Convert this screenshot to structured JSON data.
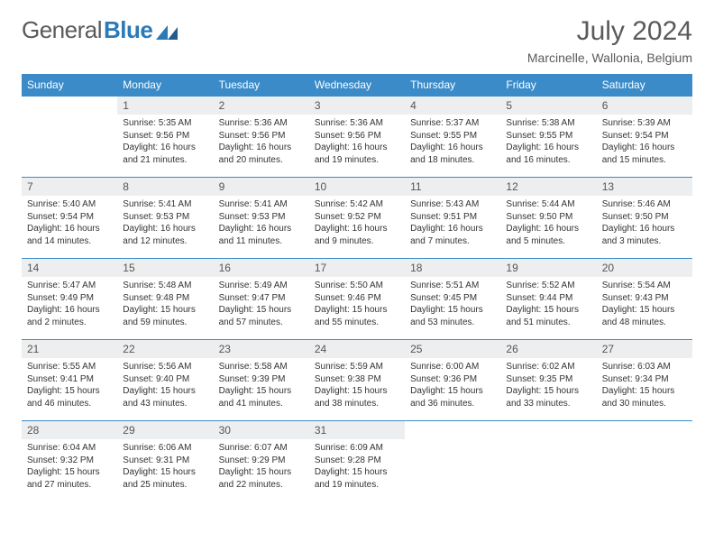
{
  "brand": {
    "part1": "General",
    "part2": "Blue",
    "color_gray": "#5a5a5a",
    "color_blue": "#2a7ab8"
  },
  "title": "July 2024",
  "location": "Marcinelle, Wallonia, Belgium",
  "header_bg": "#3a8bc8",
  "daynum_bg": "#eceeef",
  "weekdays": [
    "Sunday",
    "Monday",
    "Tuesday",
    "Wednesday",
    "Thursday",
    "Friday",
    "Saturday"
  ],
  "weeks": [
    {
      "nums": [
        "",
        "1",
        "2",
        "3",
        "4",
        "5",
        "6"
      ],
      "cells": [
        {
          "sunrise": "",
          "sunset": "",
          "daylight": ""
        },
        {
          "sunrise": "Sunrise: 5:35 AM",
          "sunset": "Sunset: 9:56 PM",
          "daylight": "Daylight: 16 hours and 21 minutes."
        },
        {
          "sunrise": "Sunrise: 5:36 AM",
          "sunset": "Sunset: 9:56 PM",
          "daylight": "Daylight: 16 hours and 20 minutes."
        },
        {
          "sunrise": "Sunrise: 5:36 AM",
          "sunset": "Sunset: 9:56 PM",
          "daylight": "Daylight: 16 hours and 19 minutes."
        },
        {
          "sunrise": "Sunrise: 5:37 AM",
          "sunset": "Sunset: 9:55 PM",
          "daylight": "Daylight: 16 hours and 18 minutes."
        },
        {
          "sunrise": "Sunrise: 5:38 AM",
          "sunset": "Sunset: 9:55 PM",
          "daylight": "Daylight: 16 hours and 16 minutes."
        },
        {
          "sunrise": "Sunrise: 5:39 AM",
          "sunset": "Sunset: 9:54 PM",
          "daylight": "Daylight: 16 hours and 15 minutes."
        }
      ]
    },
    {
      "nums": [
        "7",
        "8",
        "9",
        "10",
        "11",
        "12",
        "13"
      ],
      "cells": [
        {
          "sunrise": "Sunrise: 5:40 AM",
          "sunset": "Sunset: 9:54 PM",
          "daylight": "Daylight: 16 hours and 14 minutes."
        },
        {
          "sunrise": "Sunrise: 5:41 AM",
          "sunset": "Sunset: 9:53 PM",
          "daylight": "Daylight: 16 hours and 12 minutes."
        },
        {
          "sunrise": "Sunrise: 5:41 AM",
          "sunset": "Sunset: 9:53 PM",
          "daylight": "Daylight: 16 hours and 11 minutes."
        },
        {
          "sunrise": "Sunrise: 5:42 AM",
          "sunset": "Sunset: 9:52 PM",
          "daylight": "Daylight: 16 hours and 9 minutes."
        },
        {
          "sunrise": "Sunrise: 5:43 AM",
          "sunset": "Sunset: 9:51 PM",
          "daylight": "Daylight: 16 hours and 7 minutes."
        },
        {
          "sunrise": "Sunrise: 5:44 AM",
          "sunset": "Sunset: 9:50 PM",
          "daylight": "Daylight: 16 hours and 5 minutes."
        },
        {
          "sunrise": "Sunrise: 5:46 AM",
          "sunset": "Sunset: 9:50 PM",
          "daylight": "Daylight: 16 hours and 3 minutes."
        }
      ]
    },
    {
      "nums": [
        "14",
        "15",
        "16",
        "17",
        "18",
        "19",
        "20"
      ],
      "cells": [
        {
          "sunrise": "Sunrise: 5:47 AM",
          "sunset": "Sunset: 9:49 PM",
          "daylight": "Daylight: 16 hours and 2 minutes."
        },
        {
          "sunrise": "Sunrise: 5:48 AM",
          "sunset": "Sunset: 9:48 PM",
          "daylight": "Daylight: 15 hours and 59 minutes."
        },
        {
          "sunrise": "Sunrise: 5:49 AM",
          "sunset": "Sunset: 9:47 PM",
          "daylight": "Daylight: 15 hours and 57 minutes."
        },
        {
          "sunrise": "Sunrise: 5:50 AM",
          "sunset": "Sunset: 9:46 PM",
          "daylight": "Daylight: 15 hours and 55 minutes."
        },
        {
          "sunrise": "Sunrise: 5:51 AM",
          "sunset": "Sunset: 9:45 PM",
          "daylight": "Daylight: 15 hours and 53 minutes."
        },
        {
          "sunrise": "Sunrise: 5:52 AM",
          "sunset": "Sunset: 9:44 PM",
          "daylight": "Daylight: 15 hours and 51 minutes."
        },
        {
          "sunrise": "Sunrise: 5:54 AM",
          "sunset": "Sunset: 9:43 PM",
          "daylight": "Daylight: 15 hours and 48 minutes."
        }
      ]
    },
    {
      "nums": [
        "21",
        "22",
        "23",
        "24",
        "25",
        "26",
        "27"
      ],
      "cells": [
        {
          "sunrise": "Sunrise: 5:55 AM",
          "sunset": "Sunset: 9:41 PM",
          "daylight": "Daylight: 15 hours and 46 minutes."
        },
        {
          "sunrise": "Sunrise: 5:56 AM",
          "sunset": "Sunset: 9:40 PM",
          "daylight": "Daylight: 15 hours and 43 minutes."
        },
        {
          "sunrise": "Sunrise: 5:58 AM",
          "sunset": "Sunset: 9:39 PM",
          "daylight": "Daylight: 15 hours and 41 minutes."
        },
        {
          "sunrise": "Sunrise: 5:59 AM",
          "sunset": "Sunset: 9:38 PM",
          "daylight": "Daylight: 15 hours and 38 minutes."
        },
        {
          "sunrise": "Sunrise: 6:00 AM",
          "sunset": "Sunset: 9:36 PM",
          "daylight": "Daylight: 15 hours and 36 minutes."
        },
        {
          "sunrise": "Sunrise: 6:02 AM",
          "sunset": "Sunset: 9:35 PM",
          "daylight": "Daylight: 15 hours and 33 minutes."
        },
        {
          "sunrise": "Sunrise: 6:03 AM",
          "sunset": "Sunset: 9:34 PM",
          "daylight": "Daylight: 15 hours and 30 minutes."
        }
      ]
    },
    {
      "nums": [
        "28",
        "29",
        "30",
        "31",
        "",
        "",
        ""
      ],
      "cells": [
        {
          "sunrise": "Sunrise: 6:04 AM",
          "sunset": "Sunset: 9:32 PM",
          "daylight": "Daylight: 15 hours and 27 minutes."
        },
        {
          "sunrise": "Sunrise: 6:06 AM",
          "sunset": "Sunset: 9:31 PM",
          "daylight": "Daylight: 15 hours and 25 minutes."
        },
        {
          "sunrise": "Sunrise: 6:07 AM",
          "sunset": "Sunset: 9:29 PM",
          "daylight": "Daylight: 15 hours and 22 minutes."
        },
        {
          "sunrise": "Sunrise: 6:09 AM",
          "sunset": "Sunset: 9:28 PM",
          "daylight": "Daylight: 15 hours and 19 minutes."
        },
        {
          "sunrise": "",
          "sunset": "",
          "daylight": ""
        },
        {
          "sunrise": "",
          "sunset": "",
          "daylight": ""
        },
        {
          "sunrise": "",
          "sunset": "",
          "daylight": ""
        }
      ]
    }
  ]
}
